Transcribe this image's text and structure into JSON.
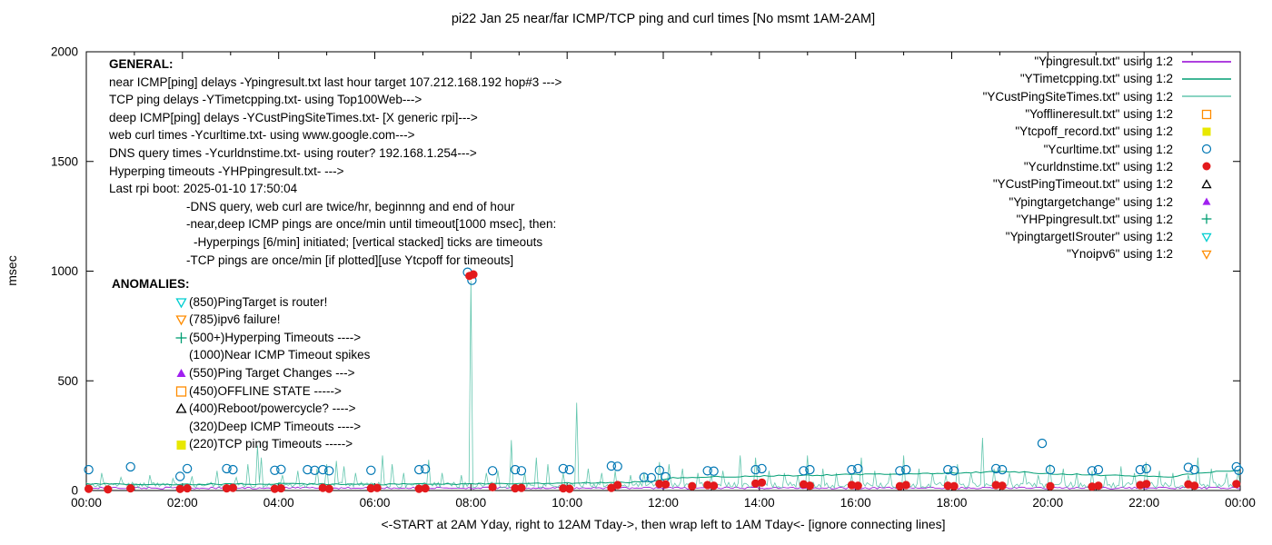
{
  "chart_data": {
    "type": "line+scatter",
    "title": "pi22 Jan 25  near/far ICMP/TCP ping and curl times [No msmt 1AM-2AM]",
    "xlabel": "<-START at 2AM Yday, right to 12AM Tday->, then wrap left to 1AM Tday<- [ignore connecting lines]",
    "ylabel": "msec",
    "ylim": [
      0,
      2000
    ],
    "yticks": [
      0,
      500,
      1000,
      1500,
      2000
    ],
    "x_range_hours": [
      0,
      24
    ],
    "xtick_hours": [
      0,
      2,
      4,
      6,
      8,
      10,
      12,
      14,
      16,
      18,
      20,
      22,
      24
    ],
    "xtick_labels": [
      "00:00",
      "02:00",
      "04:00",
      "06:00",
      "08:00",
      "10:00",
      "12:00",
      "14:00",
      "16:00",
      "18:00",
      "20:00",
      "22:00",
      "00:00"
    ],
    "grid": false,
    "noise_seed": 42,
    "legend": {
      "position": "top-right",
      "entries": [
        {
          "label": "\"Ypingresult.txt\" using 1:2",
          "marker": "line",
          "color": "#9400d3"
        },
        {
          "label": "\"YTimetcpping.txt\" using 1:2",
          "marker": "line",
          "color": "#009e73"
        },
        {
          "label": "\"YCustPingSiteTimes.txt\" using 1:2",
          "marker": "line",
          "color": "#63c6ae"
        },
        {
          "label": "\"Yofflineresult.txt\" using 1:2",
          "marker": "square-open",
          "color": "#ff8c00"
        },
        {
          "label": "\"Ytcpoff_record.txt\" using 1:2",
          "marker": "square-filled",
          "color": "#e8e800"
        },
        {
          "label": "\"Ycurltime.txt\" using 1:2",
          "marker": "circle-open",
          "color": "#0077b4"
        },
        {
          "label": "\"Ycurldnstime.txt\" using 1:2",
          "marker": "circle-filled",
          "color": "#e31a1c"
        },
        {
          "label": "\"YCustPingTimeout.txt\" using 1:2",
          "marker": "triangle-up-open",
          "color": "#000000"
        },
        {
          "label": "\"Ypingtargetchange\" using 1:2",
          "marker": "triangle-up-filled",
          "color": "#a020f0"
        },
        {
          "label": "\"YHPpingresult.txt\" using 1:2",
          "marker": "plus",
          "color": "#009e73"
        },
        {
          "label": "\"YpingtargetISrouter\" using 1:2",
          "marker": "triangle-down-open",
          "color": "#00ced1"
        },
        {
          "label": "\"Ynoipv6\" using 1:2",
          "marker": "triangle-down-open",
          "color": "#ff8c00"
        }
      ]
    },
    "annotations": {
      "general": {
        "heading": "GENERAL:",
        "lines": [
          {
            "text": "near ICMP[ping] delays -Ypingresult.txt last hour target 107.212.168.192 hop#3 --->",
            "indent": 0
          },
          {
            "text": "TCP ping delays -YTimetcpping.txt- using Top100Web--->",
            "indent": 0
          },
          {
            "text": "deep ICMP[ping] delays -YCustPingSiteTimes.txt- [X generic rpi]--->",
            "indent": 0
          },
          {
            "text": "web curl times -Ycurltime.txt- using www.google.com--->",
            "indent": 0
          },
          {
            "text": "DNS query times -Ycurldnstime.txt- using router? 192.168.1.254--->",
            "indent": 0
          },
          {
            "text": "Hyperping timeouts -YHPpingresult.txt- --->",
            "indent": 0
          },
          {
            "text": "Last rpi boot: 2025-01-10 17:50:04",
            "indent": 0
          },
          {
            "text": "-DNS query, web curl are twice/hr, beginnng and end of hour",
            "indent": 1
          },
          {
            "text": "-near,deep ICMP pings are once/min until timeout[1000 msec], then:",
            "indent": 1
          },
          {
            "text": "-Hyperpings [6/min] initiated; [vertical stacked] ticks are timeouts",
            "indent": 2
          },
          {
            "text": "-TCP pings are once/min [if plotted][use Ytcpoff for timeouts]",
            "indent": 1
          }
        ]
      },
      "anomalies": {
        "heading": "ANOMALIES:",
        "items": [
          {
            "marker": "triangle-down-open",
            "color": "#00ced1",
            "text": "(850)PingTarget is router!"
          },
          {
            "marker": "triangle-down-open",
            "color": "#ff8c00",
            "text": "(785)ipv6 failure!"
          },
          {
            "marker": "plus",
            "color": "#009e73",
            "text": "(500+)Hyperping Timeouts ---->"
          },
          {
            "marker": "none",
            "color": "",
            "text": "(1000)Near ICMP Timeout spikes"
          },
          {
            "marker": "triangle-up-filled",
            "color": "#a020f0",
            "text": "(550)Ping Target Changes --->"
          },
          {
            "marker": "square-open",
            "color": "#ff8c00",
            "text": "(450)OFFLINE STATE ----->"
          },
          {
            "marker": "triangle-up-open",
            "color": "#000000",
            "text": "(400)Reboot/powercycle? ---->"
          },
          {
            "marker": "none",
            "color": "",
            "text": "(320)Deep ICMP Timeouts ---->"
          },
          {
            "marker": "square-filled",
            "color": "#e8e800",
            "text": "(220)TCP ping Timeouts ----->"
          }
        ]
      }
    },
    "series": [
      {
        "name": "Ypingresult",
        "desc": "near ICMP ping delays",
        "type": "noisy-line",
        "color": "#9400d3",
        "width": 0.8,
        "base": 7,
        "jitter": 9,
        "step": 0.05,
        "spikes": []
      },
      {
        "name": "YCustPingSiteTimes",
        "desc": "deep ICMP ping delays",
        "type": "noisy-line",
        "color": "#63c6ae",
        "width": 0.8,
        "base": 12,
        "jitter": 26,
        "step": 0.04,
        "spikes": [
          [
            0.3,
            80
          ],
          [
            0.7,
            60
          ],
          [
            1.3,
            70
          ],
          [
            1.8,
            55
          ],
          [
            2.2,
            65
          ],
          [
            2.7,
            90
          ],
          [
            3.1,
            60
          ],
          [
            3.35,
            120
          ],
          [
            3.55,
            205
          ],
          [
            3.65,
            150
          ],
          [
            4.1,
            70
          ],
          [
            4.4,
            90
          ],
          [
            4.8,
            100
          ],
          [
            5.0,
            120
          ],
          [
            5.2,
            135
          ],
          [
            5.35,
            110
          ],
          [
            5.6,
            80
          ],
          [
            6.15,
            160
          ],
          [
            6.35,
            120
          ],
          [
            6.6,
            80
          ],
          [
            7.1,
            140
          ],
          [
            7.4,
            80
          ],
          [
            7.8,
            70
          ],
          [
            8.0,
            955
          ],
          [
            8.3,
            80
          ],
          [
            8.55,
            90
          ],
          [
            8.85,
            230
          ],
          [
            9.1,
            80
          ],
          [
            9.35,
            150
          ],
          [
            9.6,
            120
          ],
          [
            9.9,
            80
          ],
          [
            10.2,
            400
          ],
          [
            10.45,
            100
          ],
          [
            10.7,
            80
          ],
          [
            11.0,
            90
          ],
          [
            11.3,
            70
          ],
          [
            11.6,
            80
          ],
          [
            11.9,
            130
          ],
          [
            12.1,
            120
          ],
          [
            12.4,
            100
          ],
          [
            12.7,
            80
          ],
          [
            13.0,
            70
          ],
          [
            13.25,
            90
          ],
          [
            13.6,
            160
          ],
          [
            13.9,
            150
          ],
          [
            14.2,
            90
          ],
          [
            14.5,
            80
          ],
          [
            14.8,
            70
          ],
          [
            15.0,
            160
          ],
          [
            15.3,
            100
          ],
          [
            15.6,
            80
          ],
          [
            15.9,
            70
          ],
          [
            16.1,
            150
          ],
          [
            16.4,
            90
          ],
          [
            16.7,
            80
          ],
          [
            17.0,
            160
          ],
          [
            17.3,
            100
          ],
          [
            17.6,
            80
          ],
          [
            17.9,
            70
          ],
          [
            18.1,
            120
          ],
          [
            18.4,
            80
          ],
          [
            18.65,
            240
          ],
          [
            18.9,
            100
          ],
          [
            19.2,
            80
          ],
          [
            19.5,
            90
          ],
          [
            19.8,
            70
          ],
          [
            20.05,
            120
          ],
          [
            20.3,
            100
          ],
          [
            20.6,
            80
          ],
          [
            20.9,
            90
          ],
          [
            21.2,
            70
          ],
          [
            21.5,
            110
          ],
          [
            21.8,
            80
          ],
          [
            22.05,
            130
          ],
          [
            22.3,
            90
          ],
          [
            22.6,
            80
          ],
          [
            22.9,
            70
          ],
          [
            23.1,
            150
          ],
          [
            23.4,
            100
          ],
          [
            23.7,
            80
          ],
          [
            23.95,
            90
          ]
        ]
      },
      {
        "name": "YTimetcpping",
        "desc": "TCP ping delays",
        "type": "anchored-line",
        "color": "#009e73",
        "width": 1.0,
        "jitter": 6,
        "step": 0.1,
        "anchors": [
          [
            0,
            30
          ],
          [
            2,
            28
          ],
          [
            4,
            30
          ],
          [
            6,
            28
          ],
          [
            8,
            30
          ],
          [
            10,
            33
          ],
          [
            11,
            36
          ],
          [
            11.8,
            40
          ],
          [
            12.2,
            58
          ],
          [
            13,
            62
          ],
          [
            14,
            66
          ],
          [
            15,
            69
          ],
          [
            16,
            73
          ],
          [
            17,
            76
          ],
          [
            18,
            79
          ],
          [
            19,
            86
          ],
          [
            19.6,
            82
          ],
          [
            20,
            77
          ],
          [
            21,
            71
          ],
          [
            22,
            66
          ],
          [
            22.6,
            63
          ],
          [
            23,
            76
          ],
          [
            23.5,
            86
          ],
          [
            24,
            92
          ]
        ]
      },
      {
        "name": "Ycurltime",
        "desc": "web curl times",
        "type": "scatter",
        "marker": "circle-open",
        "color": "#0077b4",
        "size": 4.6,
        "points": [
          [
            0.05,
            95
          ],
          [
            0.92,
            108
          ],
          [
            1.95,
            64
          ],
          [
            2.1,
            100
          ],
          [
            2.92,
            100
          ],
          [
            3.05,
            95
          ],
          [
            3.92,
            92
          ],
          [
            4.05,
            96
          ],
          [
            4.6,
            95
          ],
          [
            4.75,
            92
          ],
          [
            4.92,
            95
          ],
          [
            5.05,
            90
          ],
          [
            5.92,
            92
          ],
          [
            6.92,
            95
          ],
          [
            7.05,
            98
          ],
          [
            7.93,
            995
          ],
          [
            8.02,
            958
          ],
          [
            8.45,
            90
          ],
          [
            8.92,
            95
          ],
          [
            9.05,
            90
          ],
          [
            9.92,
            100
          ],
          [
            10.05,
            95
          ],
          [
            10.92,
            112
          ],
          [
            11.05,
            110
          ],
          [
            11.6,
            60
          ],
          [
            11.75,
            58
          ],
          [
            11.92,
            92
          ],
          [
            12.05,
            62
          ],
          [
            12.92,
            90
          ],
          [
            13.05,
            88
          ],
          [
            13.92,
            95
          ],
          [
            14.05,
            100
          ],
          [
            14.92,
            90
          ],
          [
            15.05,
            95
          ],
          [
            15.92,
            95
          ],
          [
            16.05,
            100
          ],
          [
            16.92,
            90
          ],
          [
            17.05,
            95
          ],
          [
            17.92,
            95
          ],
          [
            18.05,
            90
          ],
          [
            18.92,
            100
          ],
          [
            19.05,
            95
          ],
          [
            19.88,
            215
          ],
          [
            20.05,
            95
          ],
          [
            20.92,
            90
          ],
          [
            21.05,
            95
          ],
          [
            21.92,
            95
          ],
          [
            22.05,
            100
          ],
          [
            22.92,
            105
          ],
          [
            23.05,
            95
          ],
          [
            23.92,
            108
          ],
          [
            23.97,
            92
          ]
        ]
      },
      {
        "name": "Ycurldnstime",
        "desc": "DNS query times",
        "type": "scatter",
        "marker": "circle-filled",
        "color": "#e31a1c",
        "size": 4.6,
        "points": [
          [
            0.05,
            8
          ],
          [
            0.45,
            5
          ],
          [
            0.92,
            10
          ],
          [
            1.95,
            7
          ],
          [
            2.1,
            10
          ],
          [
            2.92,
            10
          ],
          [
            3.05,
            12
          ],
          [
            3.92,
            8
          ],
          [
            4.05,
            10
          ],
          [
            4.92,
            12
          ],
          [
            5.05,
            8
          ],
          [
            5.92,
            10
          ],
          [
            6.05,
            12
          ],
          [
            6.92,
            8
          ],
          [
            7.05,
            10
          ],
          [
            7.97,
            978
          ],
          [
            8.05,
            985
          ],
          [
            8.45,
            15
          ],
          [
            8.92,
            10
          ],
          [
            9.05,
            12
          ],
          [
            9.92,
            10
          ],
          [
            10.05,
            8
          ],
          [
            10.92,
            12
          ],
          [
            11.05,
            25
          ],
          [
            11.92,
            30
          ],
          [
            12.05,
            28
          ],
          [
            12.6,
            20
          ],
          [
            12.92,
            25
          ],
          [
            13.05,
            22
          ],
          [
            13.92,
            32
          ],
          [
            14.05,
            36
          ],
          [
            14.92,
            28
          ],
          [
            15.05,
            22
          ],
          [
            15.92,
            25
          ],
          [
            16.05,
            22
          ],
          [
            16.92,
            20
          ],
          [
            17.05,
            25
          ],
          [
            17.92,
            22
          ],
          [
            18.05,
            20
          ],
          [
            18.92,
            25
          ],
          [
            19.05,
            22
          ],
          [
            20.05,
            20
          ],
          [
            20.92,
            18
          ],
          [
            21.05,
            22
          ],
          [
            21.92,
            25
          ],
          [
            22.05,
            30
          ],
          [
            22.92,
            28
          ],
          [
            23.05,
            22
          ],
          [
            23.92,
            30
          ]
        ]
      }
    ]
  }
}
